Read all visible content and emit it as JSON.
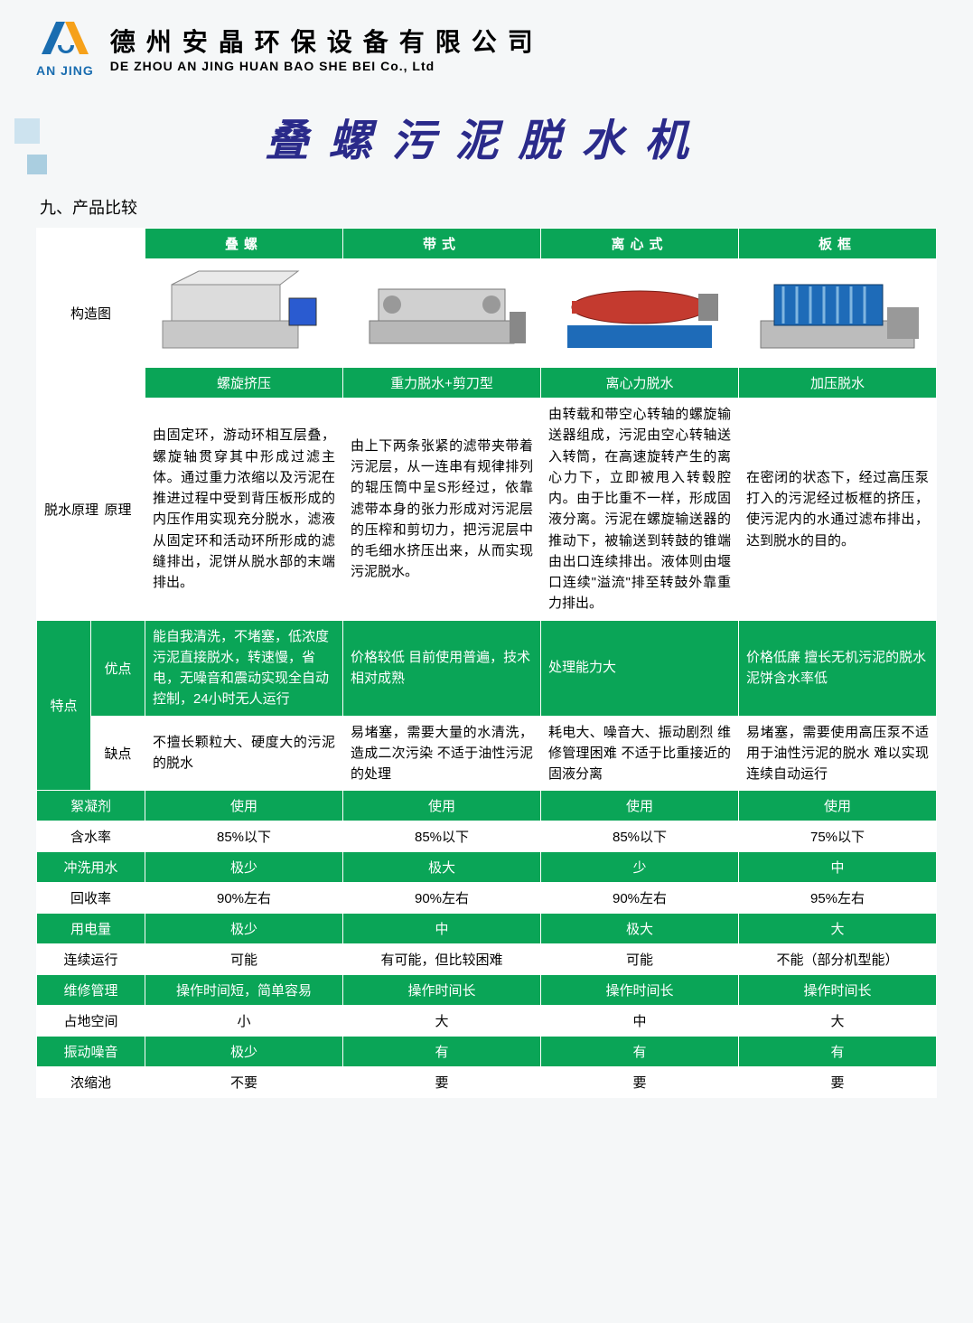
{
  "header": {
    "logo_text": "AN JING",
    "logo_colors": {
      "left": "#1a6db0",
      "right": "#f6a11a"
    },
    "company_cn": "德州安晶环保设备有限公司",
    "company_en": "DE ZHOU AN JING HUAN BAO SHE BEI Co., Ltd"
  },
  "title": "叠螺污泥脱水机",
  "title_color": "#2a2a8a",
  "section_label": "九、产品比较",
  "table": {
    "header_bg": "#0aa557",
    "header_fg": "#ffffff",
    "columns": [
      "叠螺",
      "带式",
      "离心式",
      "板框"
    ],
    "structure_row_label": "构造图",
    "method_row_label": "",
    "methods": [
      "螺旋挤压",
      "重力脱水+剪刀型",
      "离心力脱水",
      "加压脱水"
    ],
    "principle_group_label": "脱水原理",
    "principle_row_label": "原理",
    "principles": [
      "由固定环，游动环相互层叠，螺旋轴贯穿其中形成过滤主体。通过重力浓缩以及污泥在推进过程中受到背压板形成的内压作用实现充分脱水，滤液从固定环和活动环所形成的滤缝排出，泥饼从脱水部的末端排出。",
      "由上下两条张紧的滤带夹带着污泥层，从一连串有规律排列的辊压筒中呈S形经过，依靠滤带本身的张力形成对污泥层的压榨和剪切力，把污泥层中的毛细水挤压出来，从而实现污泥脱水。",
      "由转载和带空心转轴的螺旋输送器组成，污泥由空心转轴送入转筒，在高速旋转产生的离心力下，立即被甩入转毂腔内。由于比重不一样，形成固液分离。污泥在螺旋输送器的推动下，被输送到转鼓的锥端由出口连续排出。液体则由堰口连续\"溢流\"排至转鼓外靠重力排出。",
      "在密闭的状态下，经过高压泵打入的污泥经过板框的挤压，使污泥内的水通过滤布排出，达到脱水的目的。"
    ],
    "features_group_label": "特点",
    "pros_label": "优点",
    "pros": [
      "能自我清洗，不堵塞，低浓度污泥直接脱水，转速慢，省电，无噪音和震动实现全自动控制，24小时无人运行",
      "价格较低\n目前使用普遍，技术相对成熟",
      "处理能力大",
      "价格低廉\n擅长无机污泥的脱水\n泥饼含水率低"
    ],
    "cons_label": "缺点",
    "cons": [
      "不擅长颗粒大、硬度大的污泥的脱水",
      "易堵塞，需要大量的水清洗，造成二次污染\n不适于油性污泥的处理",
      "耗电大、噪音大、振动剧烈\n维修管理困难\n不适于比重接近的固液分离",
      "易堵塞，需要使用高压泵不适用于油性污泥的脱水\n难以实现连续自动运行"
    ],
    "attr_rows": [
      {
        "label": "絮凝剂",
        "bg": "green",
        "values": [
          "使用",
          "使用",
          "使用",
          "使用"
        ]
      },
      {
        "label": "含水率",
        "bg": "white",
        "values": [
          "85%以下",
          "85%以下",
          "85%以下",
          "75%以下"
        ]
      },
      {
        "label": "冲洗用水",
        "bg": "green",
        "values": [
          "极少",
          "极大",
          "少",
          "中"
        ]
      },
      {
        "label": "回收率",
        "bg": "white",
        "values": [
          "90%左右",
          "90%左右",
          "90%左右",
          "95%左右"
        ]
      },
      {
        "label": "用电量",
        "bg": "green",
        "values": [
          "极少",
          "中",
          "极大",
          "大"
        ]
      },
      {
        "label": "连续运行",
        "bg": "white",
        "values": [
          "可能",
          "有可能，但比较困难",
          "可能",
          "不能（部分机型能）"
        ]
      },
      {
        "label": "维修管理",
        "bg": "green",
        "values": [
          "操作时间短，简单容易",
          "操作时间长",
          "操作时间长",
          "操作时间长"
        ]
      },
      {
        "label": "占地空间",
        "bg": "white",
        "values": [
          "小",
          "大",
          "中",
          "大"
        ]
      },
      {
        "label": "振动噪音",
        "bg": "green",
        "values": [
          "极少",
          "有",
          "有",
          "有"
        ]
      },
      {
        "label": "浓缩池",
        "bg": "white",
        "values": [
          "不要",
          "要",
          "要",
          "要"
        ]
      }
    ]
  }
}
